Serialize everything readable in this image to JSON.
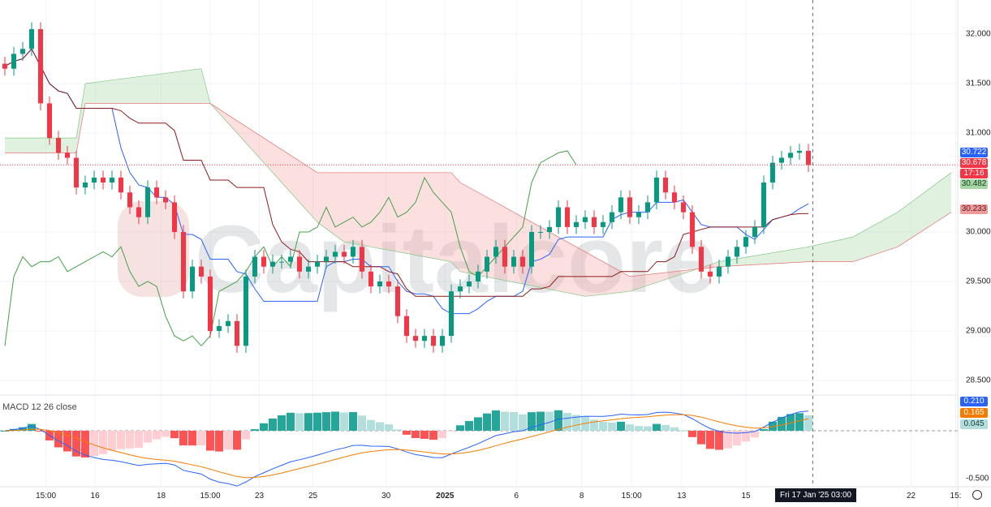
{
  "chart_data": {
    "type": "candlestick",
    "indicators": [
      "Ichimoku Cloud",
      "MACD"
    ],
    "closes": [
      31.65,
      31.8,
      31.85,
      32.05,
      31.3,
      30.95,
      30.8,
      30.75,
      30.45,
      30.5,
      30.55,
      30.5,
      30.55,
      30.4,
      30.25,
      30.15,
      30.45,
      30.35,
      30.3,
      30.0,
      29.4,
      29.65,
      29.55,
      29.0,
      29.05,
      29.1,
      28.85,
      29.55,
      29.75,
      29.65,
      29.7,
      29.7,
      29.75,
      29.6,
      29.65,
      29.7,
      29.75,
      29.8,
      29.75,
      29.85,
      29.6,
      29.45,
      29.5,
      29.45,
      29.15,
      28.95,
      28.9,
      28.95,
      28.85,
      28.95,
      29.4,
      29.45,
      29.5,
      29.6,
      29.75,
      29.85,
      29.65,
      29.75,
      29.65,
      30.0,
      30.0,
      30.05,
      30.25,
      30.05,
      30.1,
      30.15,
      30.05,
      30.1,
      30.2,
      30.35,
      30.15,
      30.2,
      30.3,
      30.55,
      30.4,
      30.3,
      30.2,
      29.85,
      29.6,
      29.55,
      29.65,
      29.75,
      29.85,
      29.95,
      30.05,
      30.5,
      30.7,
      30.75,
      30.8,
      30.82,
      30.678
    ],
    "cloud": {
      "bar_index": [
        0,
        8,
        9,
        22,
        23,
        35,
        38,
        50,
        51,
        65,
        70,
        80,
        90,
        95,
        100,
        106
      ],
      "span_a": [
        30.95,
        30.95,
        31.5,
        31.65,
        31.3,
        30.1,
        29.9,
        29.7,
        29.6,
        29.35,
        29.4,
        29.7,
        29.85,
        29.95,
        30.2,
        30.6
      ],
      "span_b": [
        30.8,
        30.8,
        31.3,
        31.3,
        31.3,
        30.6,
        30.6,
        30.6,
        30.5,
        29.8,
        29.55,
        29.65,
        29.7,
        29.7,
        29.85,
        30.2
      ]
    },
    "price_axis": {
      "ticks": [
        "32.000",
        "31.500",
        "31.000",
        "30.000",
        "29.500",
        "29.000",
        "28.500"
      ],
      "tick_values": [
        32.0,
        31.5,
        31.0,
        30.0,
        29.5,
        29.0,
        28.5
      ],
      "range": [
        28.2,
        32.35
      ]
    },
    "macd_axis": {
      "ticks": [
        "-0.500"
      ],
      "tick_values": [
        -0.5
      ],
      "range": [
        -0.6,
        0.3
      ]
    },
    "time_axis": [
      {
        "label": "15:00",
        "bar": 4.6
      },
      {
        "label": "16",
        "bar": 10.1
      },
      {
        "label": "18",
        "bar": 17.5
      },
      {
        "label": "15:00",
        "bar": 23
      },
      {
        "label": "23",
        "bar": 28.5
      },
      {
        "label": "25",
        "bar": 34.5
      },
      {
        "label": "30",
        "bar": 42.7
      },
      {
        "label": "2025",
        "bar": 49.3,
        "bold": true
      },
      {
        "label": "6",
        "bar": 57.3
      },
      {
        "label": "8",
        "bar": 64.6
      },
      {
        "label": "15:00",
        "bar": 70.2
      },
      {
        "label": "13",
        "bar": 75.8
      },
      {
        "label": "15",
        "bar": 83
      },
      {
        "label": "22",
        "bar": 101.5
      },
      {
        "label": "15:",
        "bar": 106.5
      }
    ],
    "crosshair": {
      "label": "Fri 17 Jan '25  03:00",
      "bar": 90.5,
      "price": 30.678
    },
    "price_badges": [
      {
        "text": "30.722",
        "value": 30.722,
        "color": "#2962ff"
      },
      {
        "text": "30.678",
        "value": 30.678,
        "color": "#f23645"
      },
      {
        "text": "17:16",
        "value": 30.58,
        "color": "#f23645"
      },
      {
        "text": "30.482",
        "value": 30.482,
        "color": "#a5d6a7",
        "text_color": "#1b3b1b"
      },
      {
        "text": "30.233",
        "value": 30.233,
        "color": "#ef9a9a",
        "text_color": "#5a1b1b"
      }
    ],
    "macd_badges": [
      {
        "text": "0.210",
        "value": 0.21,
        "color": "#2962ff"
      },
      {
        "text": "0.165",
        "value": 0.165,
        "color": "#f57c00"
      },
      {
        "text": "0.045",
        "value": 0.045,
        "color": "#b2dfdb",
        "text_color": "#1b3b3b"
      }
    ],
    "macd_title": "MACD 12 26 close",
    "colors": {
      "up": "#089981",
      "down": "#f23645",
      "tenkan": "#2962ff",
      "kijun": "#8b1a1a",
      "lagging": "#43a047",
      "cloud_green": "#a5d6a7",
      "cloud_red": "#f5a5a5",
      "macd": "#2962ff",
      "signal": "#f57c00"
    }
  },
  "watermark": "Capitalcore"
}
